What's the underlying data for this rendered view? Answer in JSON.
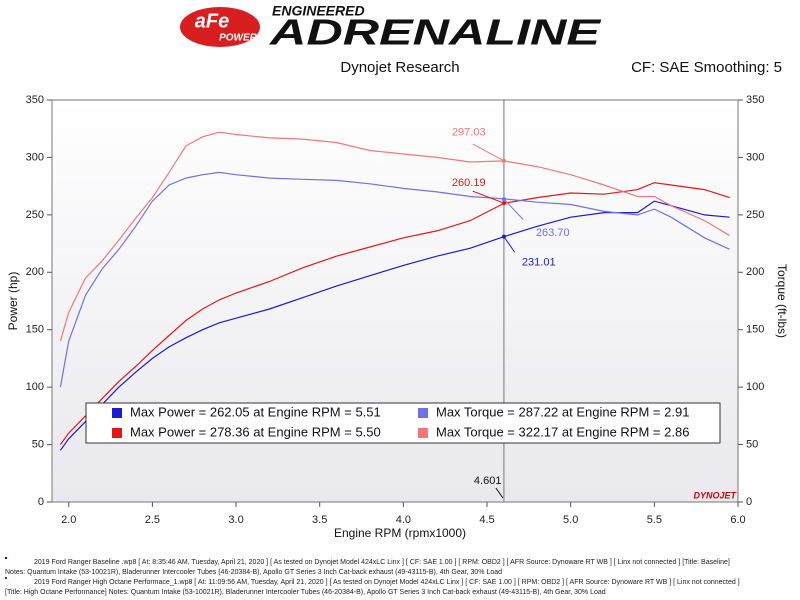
{
  "header": {
    "logo_top": "aFe",
    "logo_bottom": "POWER",
    "tagline": "ENGINEERED",
    "brand": "ADRENALINE"
  },
  "chart_data": {
    "type": "line",
    "title": "Dynojet Research",
    "subtitle": "CF: SAE Smoothing: 5",
    "x_label": "Engine RPM (rpmx1000)",
    "y_label": "Power (hp)",
    "y2_label": "Torque (ft-lbs)",
    "watermark": "DYNOJET",
    "xlim": [
      1.9,
      6.0
    ],
    "ylim": [
      0,
      350
    ],
    "y2lim": [
      0,
      350
    ],
    "xticks": [
      {
        "value": 2,
        "label": "2.0"
      },
      2.5,
      {
        "value": 3,
        "label": "3.0"
      },
      3.5,
      {
        "value": 4,
        "label": "4.0"
      },
      4.5,
      {
        "value": 5,
        "label": "5.0"
      },
      5.5,
      {
        "value": 6,
        "label": "6.0"
      }
    ],
    "yticks": [
      0,
      50,
      100,
      150,
      200,
      250,
      300,
      350
    ],
    "y2ticks": [
      0,
      50,
      100,
      150,
      200,
      250,
      300,
      350
    ],
    "grid": false,
    "x": [
      1.95,
      2.0,
      2.1,
      2.2,
      2.3,
      2.4,
      2.5,
      2.6,
      2.7,
      2.8,
      2.9,
      3.0,
      3.2,
      3.4,
      3.6,
      3.8,
      4.0,
      4.2,
      4.4,
      4.6,
      4.8,
      5.0,
      5.2,
      5.4,
      5.5,
      5.6,
      5.8,
      5.95
    ],
    "series": [
      {
        "name": "Max Power = 262.05 at Engine RPM = 5.51",
        "color": "#1a1ad8",
        "values": [
          45,
          55,
          70,
          85,
          100,
          113,
          125,
          135,
          143,
          150,
          156,
          160,
          168,
          178,
          188,
          197,
          206,
          214,
          221,
          231,
          240,
          248,
          252,
          252,
          262,
          258,
          250,
          248
        ]
      },
      {
        "name": "Max Power = 278.36 at Engine RPM = 5.50",
        "color": "#e01818",
        "values": [
          50,
          60,
          75,
          90,
          105,
          118,
          132,
          145,
          158,
          168,
          176,
          182,
          192,
          204,
          214,
          222,
          230,
          236,
          245,
          260,
          265,
          269,
          268,
          272,
          278,
          276,
          272,
          265
        ]
      },
      {
        "name": "Max Torque = 287.22 at Engine RPM = 2.91",
        "color": "#7070e8",
        "axis": "y2",
        "values": [
          100,
          140,
          180,
          203,
          220,
          240,
          262,
          276,
          282,
          285,
          287,
          285,
          282,
          281,
          280,
          277,
          273,
          270,
          266,
          264,
          261,
          259,
          253,
          250,
          255,
          248,
          230,
          220
        ]
      },
      {
        "name": "Max Torque = 322.17 at Engine RPM = 2.86",
        "color": "#f07878",
        "axis": "y2",
        "values": [
          140,
          165,
          195,
          210,
          228,
          247,
          265,
          287,
          310,
          318,
          322,
          320,
          317,
          316,
          313,
          306,
          303,
          300,
          296,
          297,
          292,
          285,
          276,
          266,
          266,
          258,
          245,
          232
        ]
      }
    ],
    "cursor": {
      "x": 4.601,
      "values": [
        231.01,
        260.19,
        263.7,
        297.03
      ],
      "value_labels": [
        "231.01",
        "260.19",
        "263.70",
        "297.03"
      ]
    },
    "notes": [
      "2019 Ford Ranger Baseline .wp8 [ At: 8:35:46 AM, Tuesday, April 21, 2020 ] [ As tested on Dynojet Model 424xLC Linx ] [ CF: SAE 1.00 ] [ RPM: OBD2 ] [ AFR Source: Dynoware RT WB ] [ Linx not connected ] [Title: Baseline]",
      "Notes: Quantum Intake (53-10021R), Bladerunner Intercooler Tubes (46-20384-B), Apollo GT Series 3 Inch Cat-back exhaust (49-43115-B), 4th Gear, 30% Load",
      "2019 Ford Ranger High Octane Performace_1.wp8 [ At: 11:09:56 AM, Tuesday, April 21, 2020 ] [ As tested on Dynojet Model 424xLC Linx ] [ CF: SAE 1.00 ] [ RPM: OBD2 ] [ AFR Source: Dynoware RT WB ] [ Linx not connected ]",
      "[Title: High Octane Performance]  Notes: Quantum Intake (53-10021R),  Bladerunner Intercooler Tubes (46-20384-B), Apollo GT Series 3 Inch Cat-back exhaust (49-43115-B), 4th Gear, 30% Load"
    ]
  }
}
